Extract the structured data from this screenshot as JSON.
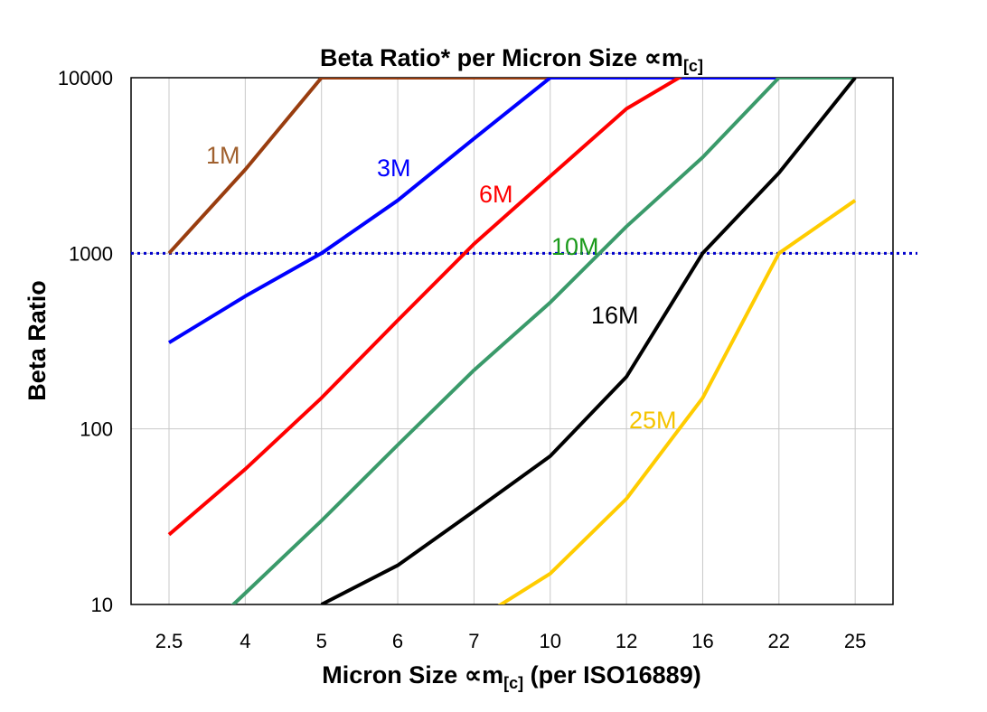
{
  "chart_data": {
    "type": "line",
    "title": "Beta Ratio* per Micron Size ∝m",
    "title_subscript": "[c]",
    "xlabel": "Micron Size ∝m",
    "xlabel_subscript": "[c]",
    "xlabel_suffix": " (per ISO16889)",
    "ylabel": "Beta Ratio",
    "yscale": "log",
    "ylim": [
      10,
      10000
    ],
    "yticks": [
      "10",
      "100",
      "1000",
      "10000"
    ],
    "categories": [
      "2.5",
      "4",
      "5",
      "6",
      "7",
      "10",
      "12",
      "16",
      "22",
      "25"
    ],
    "grid": true,
    "reference_line": {
      "y": 1000,
      "style": "dotted",
      "color": "#0000cc"
    },
    "series": [
      {
        "name": "1M",
        "color": "#993d0f",
        "label_color": "#a0602e",
        "values": [
          1000,
          3000,
          10000,
          10000,
          10000,
          10000,
          null,
          null,
          null,
          null
        ]
      },
      {
        "name": "3M",
        "color": "#0000ff",
        "label_color": "#0000ff",
        "values": [
          310,
          570,
          1000,
          2000,
          4500,
          10000,
          10000,
          10000,
          10000,
          null
        ]
      },
      {
        "name": "6M",
        "color": "#ff0000",
        "label_color": "#ff0000",
        "values": [
          25,
          59,
          150,
          415,
          1130,
          2750,
          6650,
          12000,
          null,
          null
        ]
      },
      {
        "name": "10M",
        "color": "#3a9a6a",
        "label_color": "#1a9a1a",
        "values": [
          4.5,
          11.6,
          30,
          81,
          216,
          525,
          1420,
          3520,
          10000,
          10000
        ]
      },
      {
        "name": "16M",
        "color": "#000000",
        "label_color": "#000000",
        "values": [
          null,
          null,
          10,
          16.7,
          34,
          70,
          198,
          1000,
          2870,
          10000
        ]
      },
      {
        "name": "25M",
        "color": "#ffcc00",
        "label_color": "#f5c400",
        "values": [
          null,
          null,
          null,
          null,
          8,
          15,
          40,
          150,
          1000,
          2000
        ]
      }
    ]
  }
}
